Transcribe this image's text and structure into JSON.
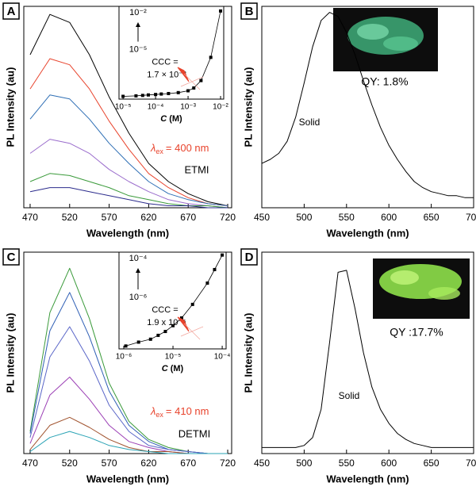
{
  "chart_data": [
    {
      "type": "line",
      "panel_label": "A",
      "xlabel": "Wavelength (nm)",
      "ylabel": "PL Intensity (au)",
      "x": [
        470,
        495,
        520,
        545,
        570,
        595,
        620,
        645,
        670,
        695,
        720
      ],
      "xlim": [
        462,
        725
      ],
      "ylim": [
        0,
        100
      ],
      "xticks": [
        470,
        520,
        570,
        620,
        670,
        720
      ],
      "series": [
        {
          "color": "#000000",
          "values": [
            76,
            96,
            92,
            76,
            55,
            37,
            22,
            13,
            7,
            3,
            1
          ]
        },
        {
          "color": "#e8432c",
          "values": [
            59,
            74,
            71,
            59,
            43,
            29,
            17,
            10,
            5,
            2,
            1
          ]
        },
        {
          "color": "#2f6fb5",
          "values": [
            44,
            56,
            54,
            44,
            32,
            22,
            13,
            7,
            4,
            2,
            1
          ]
        },
        {
          "color": "#9a6ccc",
          "values": [
            27,
            34,
            32,
            27,
            19,
            13,
            8,
            4,
            2,
            1,
            0
          ]
        },
        {
          "color": "#3a9a3a",
          "values": [
            13,
            17,
            16,
            13,
            10,
            6,
            4,
            2,
            1,
            1,
            0
          ]
        },
        {
          "color": "#2b2b8c",
          "values": [
            8,
            10,
            10,
            8,
            6,
            4,
            2,
            1,
            1,
            0,
            0
          ]
        }
      ],
      "label_color": "#e8432c",
      "annotations": {
        "excitation": {
          "symbol": "λ",
          "subscript": "ex",
          "text": "= 400 nm"
        },
        "sample": "ETMI"
      },
      "inset": {
        "type": "scatter",
        "xscale": "log",
        "x": [
          1e-05,
          2.5e-05,
          4e-05,
          6e-05,
          0.0001,
          0.00015,
          0.00025,
          0.0005,
          0.001,
          0.0015,
          0.0025,
          0.005,
          0.01
        ],
        "values": [
          3,
          3.5,
          4,
          4.5,
          5,
          5.5,
          6,
          7,
          9,
          12,
          20,
          45,
          95
        ],
        "xlim": [
          7.5e-06,
          0.0125
        ],
        "ylim": [
          0,
          100
        ],
        "xticks": [
          {
            "value": 1e-05,
            "label": "10⁻⁵"
          },
          {
            "value": 0.0001,
            "label": "10⁻⁴"
          },
          {
            "value": 0.001,
            "label": "10⁻³"
          },
          {
            "value": 0.01,
            "label": "10⁻²"
          }
        ],
        "xlabel": {
          "italic": "C",
          "text": "(M)"
        },
        "ccc_label": "CCC =",
        "ccc_value": "1.7 × 10⁻³",
        "range_high": "10⁻²",
        "range_low": "10⁻⁵"
      }
    },
    {
      "type": "line",
      "panel_label": "B",
      "xlabel": "Wavelength (nm)",
      "ylabel": "PL Intensity (au)",
      "x": [
        450,
        460,
        470,
        480,
        490,
        500,
        510,
        520,
        530,
        540,
        550,
        560,
        570,
        580,
        590,
        600,
        610,
        620,
        630,
        640,
        650,
        660,
        670,
        680,
        690,
        700
      ],
      "xlim": [
        450,
        700
      ],
      "ylim": [
        0,
        100
      ],
      "xticks": [
        450,
        500,
        550,
        600,
        650,
        700
      ],
      "series": [
        {
          "color": "#000000",
          "values": [
            22,
            24,
            27,
            33,
            45,
            62,
            80,
            93,
            97,
            95,
            87,
            76,
            63,
            51,
            40,
            31,
            24,
            18,
            13,
            10,
            8,
            7,
            6,
            6,
            5,
            5
          ]
        }
      ],
      "annotations": {
        "phase": "Solid",
        "quantum_yield": "QY: 1.8%"
      }
    },
    {
      "type": "line",
      "panel_label": "C",
      "xlabel": "Wavelength (nm)",
      "ylabel": "PL Intensity (au)",
      "x": [
        470,
        495,
        520,
        545,
        570,
        595,
        620,
        645,
        670,
        695,
        720
      ],
      "xlim": [
        462,
        725
      ],
      "ylim": [
        0,
        100
      ],
      "xticks": [
        470,
        520,
        570,
        620,
        670,
        720
      ],
      "series": [
        {
          "color": "#3a9a3a",
          "values": [
            11,
            70,
            92,
            67,
            35,
            16,
            7,
            3,
            1,
            0,
            0
          ]
        },
        {
          "color": "#2f5fb5",
          "values": [
            10,
            61,
            80,
            58,
            31,
            14,
            6,
            2,
            1,
            0,
            0
          ]
        },
        {
          "color": "#5a66c8",
          "values": [
            8,
            48,
            63,
            46,
            24,
            11,
            4,
            2,
            1,
            0,
            0
          ]
        },
        {
          "color": "#9b3fb5",
          "values": [
            5,
            29,
            38,
            27,
            14,
            6,
            3,
            1,
            0,
            0,
            0
          ]
        },
        {
          "color": "#a0522d",
          "values": [
            2,
            14,
            18,
            13,
            7,
            3,
            1,
            1,
            0,
            0,
            0
          ]
        },
        {
          "color": "#2aa3b5",
          "values": [
            1,
            8,
            11,
            8,
            4,
            2,
            1,
            0,
            0,
            0,
            0
          ]
        }
      ],
      "label_color": "#e8432c",
      "annotations": {
        "excitation": {
          "symbol": "λ",
          "subscript": "ex",
          "text": "= 410 nm"
        },
        "sample": "DETMI"
      },
      "inset": {
        "type": "scatter",
        "xscale": "log",
        "x": [
          1.1e-06,
          2e-06,
          3.5e-06,
          5e-06,
          7e-06,
          1e-05,
          1.5e-05,
          2.5e-05,
          5e-05,
          7e-05,
          0.0001
        ],
        "values": [
          3,
          7,
          10,
          14,
          18,
          24,
          32,
          46,
          68,
          82,
          97
        ],
        "xlim": [
          8e-07,
          0.00012
        ],
        "ylim": [
          0,
          100
        ],
        "xticks": [
          {
            "value": 1e-06,
            "label": "10⁻⁶"
          },
          {
            "value": 1e-05,
            "label": "10⁻⁵"
          },
          {
            "value": 0.0001,
            "label": "10⁻⁴"
          }
        ],
        "xlabel": {
          "italic": "C",
          "text": "(M)"
        },
        "ccc_label": "CCC =",
        "ccc_value": "1.9 x 10⁻⁵",
        "range_high": "10⁻⁴",
        "range_low": "10⁻⁶"
      }
    },
    {
      "type": "line",
      "panel_label": "D",
      "xlabel": "Wavelength (nm)",
      "ylabel": "PL Intensity (au)",
      "x": [
        450,
        460,
        470,
        480,
        490,
        500,
        510,
        520,
        530,
        540,
        550,
        560,
        570,
        580,
        590,
        600,
        610,
        620,
        630,
        640,
        650,
        660,
        670,
        680,
        690,
        700
      ],
      "xlim": [
        450,
        700
      ],
      "ylim": [
        0,
        100
      ],
      "xticks": [
        450,
        500,
        550,
        600,
        650,
        700
      ],
      "series": [
        {
          "color": "#000000",
          "values": [
            3,
            3,
            3,
            3,
            3,
            4,
            8,
            22,
            55,
            90,
            91,
            72,
            50,
            33,
            22,
            15,
            10,
            7,
            5,
            4,
            3,
            3,
            3,
            3,
            3,
            3
          ]
        }
      ],
      "annotations": {
        "phase": "Solid",
        "quantum_yield": "QY :17.7%"
      }
    }
  ]
}
